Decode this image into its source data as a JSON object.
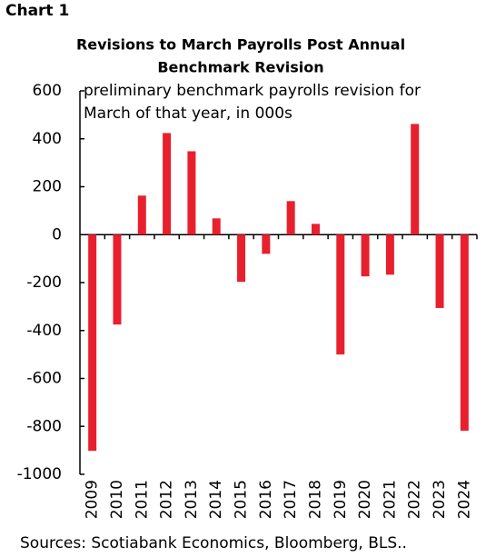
{
  "header": {
    "label": "Chart 1"
  },
  "chart_data": {
    "type": "bar",
    "title": [
      "Revisions to March Payrolls Post Annual",
      "Benchmark Revision"
    ],
    "annotation": [
      "preliminary benchmark payrolls revision for",
      "March of that year, in 000s"
    ],
    "categories": [
      "2009",
      "2010",
      "2011",
      "2012",
      "2013",
      "2014",
      "2015",
      "2016",
      "2017",
      "2018",
      "2019",
      "2020",
      "2021",
      "2022",
      "2023",
      "2024"
    ],
    "values": [
      -902,
      -375,
      163,
      424,
      348,
      68,
      -197,
      -80,
      140,
      45,
      -500,
      -174,
      -167,
      462,
      -306,
      -818
    ],
    "color": "#e8202e",
    "ylim": [
      -1000,
      600
    ],
    "yticks": [
      -1000,
      -800,
      -600,
      -400,
      -200,
      0,
      200,
      400,
      600
    ],
    "grid": false
  },
  "footer": {
    "source": "Sources: Scotiabank Economics, Bloomberg, BLS.."
  }
}
